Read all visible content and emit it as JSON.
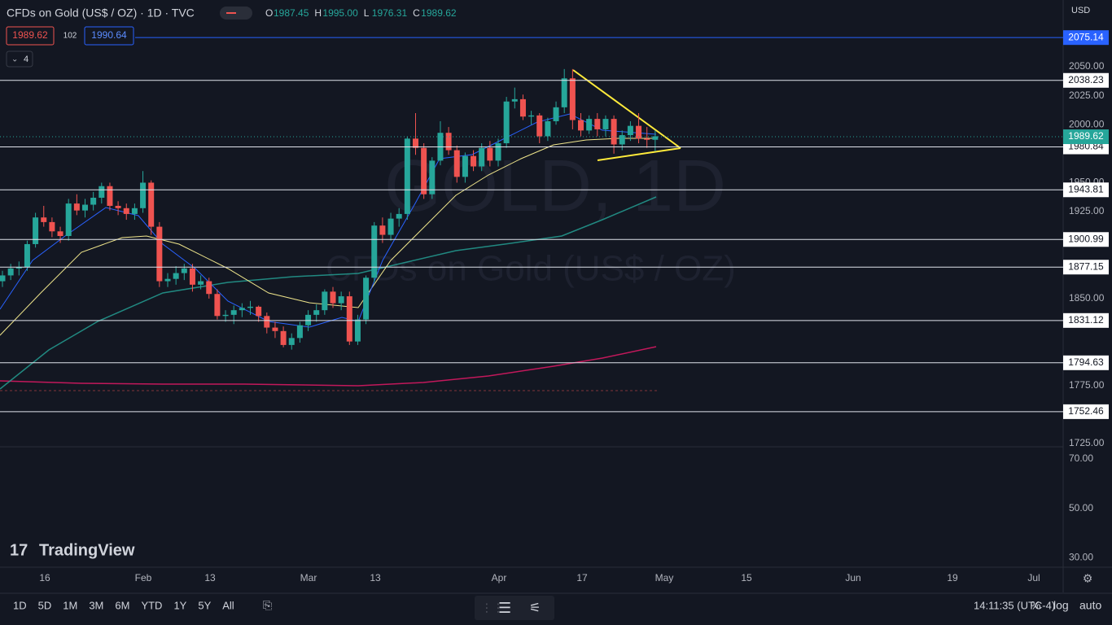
{
  "header": {
    "symbol": "CFDs on Gold (US$ / OZ) · 1D · TVC",
    "ohlc": [
      {
        "label": "O",
        "value": "1987.45"
      },
      {
        "label": "H",
        "value": "1995.00"
      },
      {
        "label": "L",
        "value": "1976.31"
      },
      {
        "label": "C",
        "value": "1989.62"
      }
    ],
    "sell": "1989.62",
    "spread": "102",
    "buy": "1990.64",
    "indicators": "4",
    "currency": "USD"
  },
  "watermark": {
    "line1": "GOLD, 1D",
    "line2": "CFDs on Gold (US$ / OZ)"
  },
  "logo": "TradingView",
  "price_axis": {
    "ticks": [
      {
        "value": 2050,
        "label": "2050.00"
      },
      {
        "value": 2025,
        "label": "2025.00"
      },
      {
        "value": 2000,
        "label": "2000.00"
      },
      {
        "value": 1950,
        "label": "1950.00"
      },
      {
        "value": 1925,
        "label": "1925.00"
      },
      {
        "value": 1850,
        "label": "1850.00"
      },
      {
        "value": 1775,
        "label": "1775.00"
      },
      {
        "value": 1725,
        "label": "1725.00"
      }
    ],
    "levels": [
      2038.23,
      1980.84,
      1943.81,
      1900.99,
      1877.15,
      1831.12,
      1794.63,
      1752.46
    ],
    "alert_level": 2075.14,
    "last_price": 1989.62
  },
  "rsi_axis": {
    "ticks": [
      {
        "value": 70,
        "label": "70.00"
      },
      {
        "value": 50,
        "label": "50.00"
      },
      {
        "value": 30,
        "label": "30.00"
      }
    ]
  },
  "time_axis": [
    "16",
    "Feb",
    "13",
    "Mar",
    "13",
    "Apr",
    "17",
    "May",
    "15",
    "Jun",
    "19",
    "Jul"
  ],
  "candles": [
    [
      1865,
      1874,
      1860,
      1870
    ],
    [
      1870,
      1880,
      1866,
      1876
    ],
    [
      1876,
      1882,
      1870,
      1877
    ],
    [
      1877,
      1900,
      1874,
      1897
    ],
    [
      1897,
      1924,
      1894,
      1920
    ],
    [
      1920,
      1930,
      1912,
      1916
    ],
    [
      1916,
      1920,
      1903,
      1908
    ],
    [
      1908,
      1912,
      1898,
      1904
    ],
    [
      1904,
      1936,
      1900,
      1932
    ],
    [
      1932,
      1940,
      1922,
      1926
    ],
    [
      1926,
      1936,
      1920,
      1931
    ],
    [
      1931,
      1942,
      1926,
      1937
    ],
    [
      1937,
      1950,
      1932,
      1947
    ],
    [
      1947,
      1950,
      1926,
      1930
    ],
    [
      1930,
      1934,
      1922,
      1928
    ],
    [
      1928,
      1932,
      1918,
      1923
    ],
    [
      1923,
      1932,
      1918,
      1928
    ],
    [
      1928,
      1960,
      1924,
      1950
    ],
    [
      1950,
      1952,
      1905,
      1912
    ],
    [
      1912,
      1916,
      1860,
      1865
    ],
    [
      1865,
      1872,
      1860,
      1867
    ],
    [
      1867,
      1878,
      1862,
      1872
    ],
    [
      1872,
      1880,
      1866,
      1876
    ],
    [
      1876,
      1880,
      1856,
      1862
    ],
    [
      1862,
      1870,
      1858,
      1865
    ],
    [
      1865,
      1868,
      1850,
      1854
    ],
    [
      1854,
      1858,
      1832,
      1835
    ],
    [
      1835,
      1840,
      1830,
      1836
    ],
    [
      1836,
      1844,
      1828,
      1840
    ],
    [
      1840,
      1846,
      1834,
      1842
    ],
    [
      1842,
      1848,
      1836,
      1843
    ],
    [
      1843,
      1844,
      1830,
      1835
    ],
    [
      1835,
      1838,
      1820,
      1825
    ],
    [
      1825,
      1830,
      1816,
      1822
    ],
    [
      1822,
      1826,
      1808,
      1810
    ],
    [
      1810,
      1820,
      1806,
      1816
    ],
    [
      1816,
      1830,
      1812,
      1827
    ],
    [
      1827,
      1840,
      1822,
      1836
    ],
    [
      1836,
      1845,
      1830,
      1840
    ],
    [
      1840,
      1858,
      1836,
      1856
    ],
    [
      1856,
      1860,
      1842,
      1846
    ],
    [
      1846,
      1856,
      1840,
      1852
    ],
    [
      1852,
      1856,
      1810,
      1813
    ],
    [
      1813,
      1836,
      1810,
      1832
    ],
    [
      1832,
      1870,
      1828,
      1868
    ],
    [
      1868,
      1916,
      1864,
      1913
    ],
    [
      1913,
      1920,
      1898,
      1905
    ],
    [
      1905,
      1924,
      1900,
      1919
    ],
    [
      1919,
      1928,
      1912,
      1923
    ],
    [
      1923,
      1990,
      1918,
      1988
    ],
    [
      1988,
      2010,
      1974,
      1980
    ],
    [
      1980,
      1984,
      1936,
      1940
    ],
    [
      1940,
      1972,
      1936,
      1969
    ],
    [
      1969,
      2003,
      1965,
      1993
    ],
    [
      1993,
      1998,
      1974,
      1978
    ],
    [
      1978,
      1982,
      1950,
      1955
    ],
    [
      1955,
      1976,
      1950,
      1973
    ],
    [
      1973,
      1978,
      1960,
      1964
    ],
    [
      1964,
      1984,
      1960,
      1980
    ],
    [
      1980,
      1986,
      1964,
      1969
    ],
    [
      1969,
      1988,
      1964,
      1984
    ],
    [
      1984,
      2024,
      1980,
      2020
    ],
    [
      2020,
      2032,
      2014,
      2022
    ],
    [
      2022,
      2026,
      2004,
      2007
    ],
    [
      2007,
      2012,
      2000,
      2008
    ],
    [
      2008,
      2010,
      1984,
      1990
    ],
    [
      1990,
      2006,
      1986,
      2003
    ],
    [
      2003,
      2020,
      2000,
      2015
    ],
    [
      2015,
      2048,
      2010,
      2040
    ],
    [
      2040,
      2048,
      1996,
      2004
    ],
    [
      2004,
      2010,
      1990,
      1995
    ],
    [
      1995,
      2008,
      1992,
      2005
    ],
    [
      2005,
      2010,
      1990,
      1996
    ],
    [
      1996,
      2008,
      1990,
      2005
    ],
    [
      2005,
      2008,
      1975,
      1983
    ],
    [
      1983,
      1995,
      1978,
      1991
    ],
    [
      1991,
      2003,
      1986,
      1999
    ],
    [
      1999,
      2010,
      1984,
      1988
    ],
    [
      1988,
      1998,
      1980,
      1987
    ],
    [
      1987,
      1995,
      1977,
      1990
    ]
  ],
  "toolbar": {
    "ranges": [
      "1D",
      "5D",
      "1M",
      "3M",
      "6M",
      "YTD",
      "1Y",
      "5Y",
      "All"
    ],
    "clock": "14:11:35 (UTC-4)",
    "options": [
      "%",
      "log",
      "auto"
    ]
  }
}
